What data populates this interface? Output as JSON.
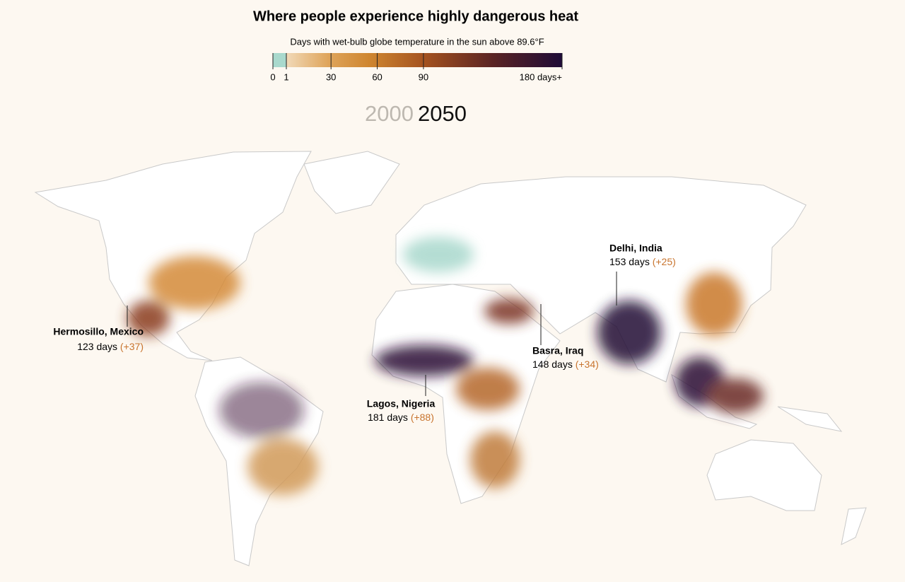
{
  "header": {
    "title": "Where people experience highly dangerous heat",
    "subtitle": "Days with wet-bulb globe temperature in the sun above 89.6°F"
  },
  "legend": {
    "min": 0,
    "max": 180,
    "ticks": [
      0,
      1,
      30,
      60,
      90,
      {
        "value": 180,
        "label": "180 days+"
      }
    ]
  },
  "years": [
    "2000",
    "2050"
  ],
  "annotations": [
    {
      "name": "Hermosillo, Mexico",
      "days": "123 days",
      "change": "(+37)"
    },
    {
      "name": "Lagos, Nigeria",
      "days": "181 days",
      "change": "(+88)"
    },
    {
      "name": "Basra, Iraq",
      "days": "148 days",
      "change": "(+34)"
    },
    {
      "name": "Delhi, India",
      "days": "153 days",
      "change": "(+25)"
    }
  ]
}
